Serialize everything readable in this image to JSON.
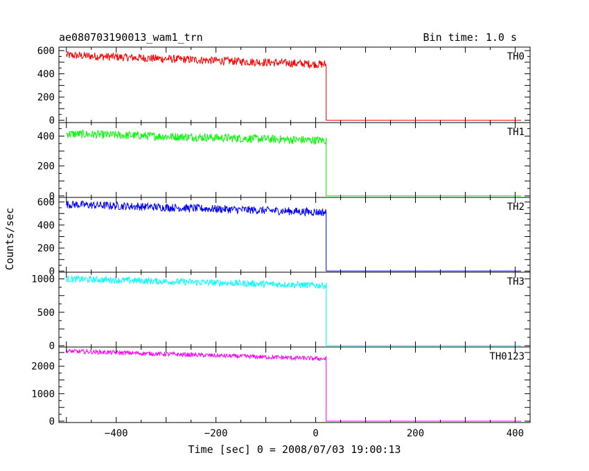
{
  "header": {
    "title": "ae080703190013_wam1_trn",
    "bin_time": "Bin time: 1.0 s"
  },
  "axes": {
    "ylabel": "Counts/sec",
    "xlabel": "Time [sec] 0 = 2008/07/03 19:00:13"
  },
  "chart_data": {
    "type": "line",
    "shared_x": {
      "range": [
        -515,
        430
      ],
      "ticks": [
        -400,
        -200,
        0,
        200,
        400
      ],
      "minor_step": 100
    },
    "step_time": 21,
    "panels": [
      {
        "name": "TH0",
        "color": "#ff0000",
        "ylim": [
          -20,
          630
        ],
        "yticks": [
          0,
          200,
          400,
          600
        ],
        "minor_step": 100,
        "trend": {
          "x": [
            -500,
            21
          ],
          "y": [
            560,
            480
          ]
        },
        "noise_amplitude": 35,
        "after_step": 0
      },
      {
        "name": "TH1",
        "color": "#00ff00",
        "ylim": [
          -10,
          490
        ],
        "yticks": [
          0,
          200,
          400
        ],
        "minor_step": 100,
        "trend": {
          "x": [
            -500,
            21
          ],
          "y": [
            415,
            370
          ]
        },
        "noise_amplitude": 28,
        "after_step": 0
      },
      {
        "name": "TH2",
        "color": "#0000ff",
        "ylim": [
          -10,
          640
        ],
        "yticks": [
          0,
          200,
          400,
          600
        ],
        "minor_step": 100,
        "trend": {
          "x": [
            -500,
            21
          ],
          "y": [
            580,
            510
          ]
        },
        "noise_amplitude": 35,
        "after_step": 0
      },
      {
        "name": "TH3",
        "color": "#00ffff",
        "ylim": [
          -20,
          1100
        ],
        "yticks": [
          0,
          500,
          1000
        ],
        "minor_step": 250,
        "trend": {
          "x": [
            -500,
            21
          ],
          "y": [
            1000,
            900
          ]
        },
        "noise_amplitude": 50,
        "after_step": 0
      },
      {
        "name": "TH0123",
        "color": "#ff00ff",
        "ylim": [
          -50,
          2700
        ],
        "yticks": [
          0,
          1000,
          2000
        ],
        "minor_step": 500,
        "trend": {
          "x": [
            -500,
            21
          ],
          "y": [
            2550,
            2270
          ]
        },
        "noise_amplitude": 80,
        "after_step": 0
      }
    ]
  }
}
